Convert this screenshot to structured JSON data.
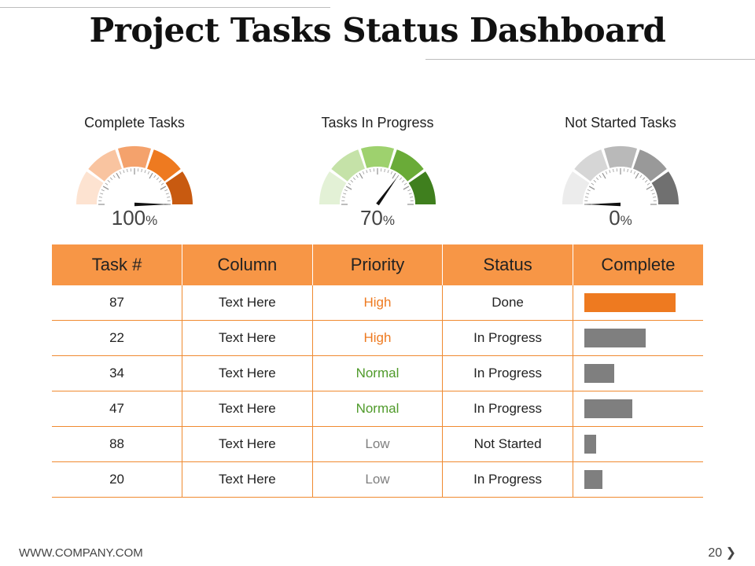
{
  "title": "Project Tasks Status Dashboard",
  "gauges": [
    {
      "label": "Complete Tasks",
      "value": "100",
      "unit": "%",
      "fraction": 1.0,
      "colors": [
        "#fde3d1",
        "#f9c4a0",
        "#f4a26c",
        "#ee7a20",
        "#c85a10"
      ]
    },
    {
      "label": "Tasks In Progress",
      "value": "70",
      "unit": "%",
      "fraction": 0.7,
      "colors": [
        "#e3f1d6",
        "#c5e2a8",
        "#9ed16e",
        "#6aab38",
        "#3f7f1e"
      ]
    },
    {
      "label": "Not Started Tasks",
      "value": "0",
      "unit": "%",
      "fraction": 0.0,
      "colors": [
        "#ececec",
        "#d6d6d6",
        "#b9b9b9",
        "#999999",
        "#707070"
      ]
    }
  ],
  "table": {
    "headers": [
      "Task #",
      "Column",
      "Priority",
      "Status",
      "Complete"
    ],
    "rows": [
      {
        "task": "87",
        "column": "Text Here",
        "priority": "High",
        "status": "Done",
        "complete": 1.0
      },
      {
        "task": "22",
        "column": "Text Here",
        "priority": "High",
        "status": "In Progress",
        "complete": 0.67
      },
      {
        "task": "34",
        "column": "Text Here",
        "priority": "Normal",
        "status": "In Progress",
        "complete": 0.33
      },
      {
        "task": "47",
        "column": "Text Here",
        "priority": "Normal",
        "status": "In Progress",
        "complete": 0.53
      },
      {
        "task": "88",
        "column": "Text Here",
        "priority": "Low",
        "status": "Not Started",
        "complete": 0.13
      },
      {
        "task": "20",
        "column": "Text Here",
        "priority": "Low",
        "status": "In Progress",
        "complete": 0.2
      }
    ]
  },
  "priority_colors": {
    "High": "#ee7a20",
    "Normal": "#4f9a2a",
    "Low": "#7f7f7f"
  },
  "bar_colors": {
    "done": "#ee7a20",
    "other": "#7f7f7f"
  },
  "footer": {
    "url": "WWW.COMPANY.COM",
    "page": "20 ❯"
  }
}
